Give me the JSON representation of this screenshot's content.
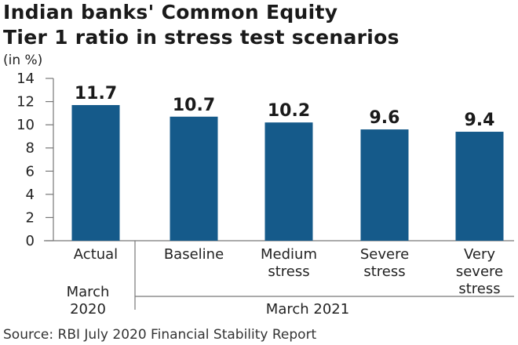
{
  "chart_data": {
    "type": "bar",
    "title": [
      "Indian banks' Common Equity",
      "Tier 1 ratio in stress test scenarios"
    ],
    "ylabel": "(in %)",
    "ylim": [
      0,
      14
    ],
    "yticks": [
      "0",
      "2",
      "4",
      "6",
      "8",
      "10",
      "12",
      "14"
    ],
    "categories": [
      [
        "Actual"
      ],
      [
        "Baseline"
      ],
      [
        "Medium",
        "stress"
      ],
      [
        "Severe",
        "stress"
      ],
      [
        "Very",
        "severe",
        "stress"
      ]
    ],
    "values": [
      11.7,
      10.7,
      10.2,
      9.6,
      9.4
    ],
    "data_labels": [
      "11.7",
      "10.7",
      "10.2",
      "9.6",
      "9.4"
    ],
    "groups": [
      {
        "label": [
          "March",
          "2020"
        ]
      },
      {
        "label": [
          "March 2021"
        ]
      }
    ],
    "bar_color": "#155a8a",
    "grid": false,
    "source": "Source: RBI July 2020 Financial Stability Report"
  }
}
